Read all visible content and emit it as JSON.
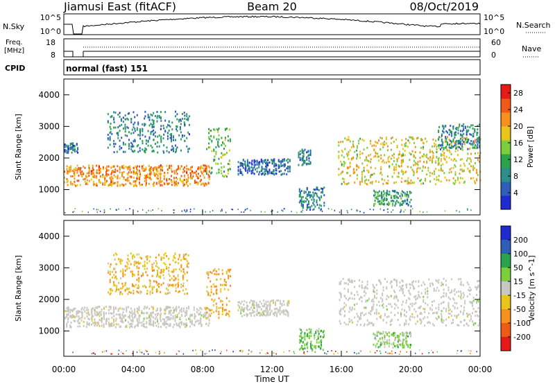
{
  "header": {
    "station": "Jiamusi East (fitACF)",
    "beam": "Beam 20",
    "date": "08/Oct/2019"
  },
  "noise_panel": {
    "left_label": "N.Sky",
    "right_label": "N.Search",
    "tick_top": "10^5",
    "tick_bottom": "10^0",
    "right_tick_top": "10^5",
    "right_tick_bottom": "10^0"
  },
  "freq_panel": {
    "left_label_1": "Freq.",
    "left_label_2": "[MHz]",
    "tick_top": "18",
    "tick_bottom": "8",
    "right_label": "Nave",
    "right_tick_top": "60",
    "right_tick_bottom": "0"
  },
  "cpid_panel": {
    "label": "CPID",
    "mode": "normal (fast) 151"
  },
  "x_axis": {
    "label": "Time UT",
    "ticks": [
      "00:00",
      "04:00",
      "08:00",
      "12:00",
      "16:00",
      "20:00",
      "00:00"
    ]
  },
  "colors": {
    "power_scale": [
      "#1f2ad0",
      "#2d5fb8",
      "#2e8f8a",
      "#2aa34a",
      "#7ccf3c",
      "#e8c51b",
      "#f5911c",
      "#ef5a17",
      "#e61a17"
    ],
    "velocity_scale": [
      "#1f2ad0",
      "#2d5fb8",
      "#2aa34a",
      "#7ccf3c",
      "#c8c8c0",
      "#e8c51b",
      "#f5911c",
      "#ef5a17",
      "#e61a17"
    ],
    "ground_scatter": "#c8c8c0"
  },
  "chart_data": [
    {
      "type": "heatmap",
      "panel": "power",
      "ylabel": "Slant Range [km]",
      "xlabel": "Time UT",
      "x_range_hours": [
        0,
        24
      ],
      "ylim": [
        200,
        4500
      ],
      "y_ticks": [
        "1000",
        "2000",
        "3000",
        "4000"
      ],
      "colorbar_label": "Power [dB]",
      "colorbar_ticks": [
        "4",
        "8",
        "12",
        "16",
        "20",
        "24",
        "28"
      ],
      "colorbar_range": [
        0,
        30
      ],
      "echo_bands": [
        {
          "t_start": 0.0,
          "t_end": 8.4,
          "range_start": 1150,
          "range_end": 1800,
          "power": 22
        },
        {
          "t_start": 0.0,
          "t_end": 0.8,
          "range_start": 2200,
          "range_end": 2500,
          "power": 6
        },
        {
          "t_start": 2.5,
          "t_end": 7.2,
          "range_start": 2200,
          "range_end": 3500,
          "power": 8
        },
        {
          "t_start": 8.2,
          "t_end": 9.6,
          "range_start": 1400,
          "range_end": 3000,
          "power": 14
        },
        {
          "t_start": 10.0,
          "t_end": 13.0,
          "range_start": 1500,
          "range_end": 2000,
          "power": 6
        },
        {
          "t_start": 13.5,
          "t_end": 14.2,
          "range_start": 1800,
          "range_end": 2300,
          "power": 8
        },
        {
          "t_start": 13.5,
          "t_end": 15.0,
          "range_start": 400,
          "range_end": 1100,
          "power": 8
        },
        {
          "t_start": 15.8,
          "t_end": 24.0,
          "range_start": 1200,
          "range_end": 2700,
          "power": 18
        },
        {
          "t_start": 17.8,
          "t_end": 20.0,
          "range_start": 500,
          "range_end": 1000,
          "power": 10
        },
        {
          "t_start": 21.5,
          "t_end": 24.0,
          "range_start": 2300,
          "range_end": 3100,
          "power": 8
        }
      ]
    },
    {
      "type": "heatmap",
      "panel": "velocity",
      "ylabel": "Slant Range [km]",
      "xlabel": "Time UT",
      "x_range_hours": [
        0,
        24
      ],
      "ylim": [
        200,
        4500
      ],
      "y_ticks": [
        "1000",
        "2000",
        "3000",
        "4000"
      ],
      "colorbar_label": "Velocity [m s^-1]",
      "colorbar_ticks": [
        "200",
        "100",
        "50",
        "15",
        "-15",
        "-50",
        "-100",
        "-200"
      ],
      "colorbar_range": [
        -250,
        250
      ],
      "echo_bands": [
        {
          "t_start": 0.0,
          "t_end": 8.4,
          "range_start": 1150,
          "range_end": 1800,
          "velocity": 0
        },
        {
          "t_start": 2.5,
          "t_end": 7.2,
          "range_start": 2200,
          "range_end": 3500,
          "velocity": -40
        },
        {
          "t_start": 8.2,
          "t_end": 9.6,
          "range_start": 1400,
          "range_end": 3000,
          "velocity": -60
        },
        {
          "t_start": 10.0,
          "t_end": 13.0,
          "range_start": 1500,
          "range_end": 2000,
          "velocity": 0
        },
        {
          "t_start": 13.5,
          "t_end": 15.0,
          "range_start": 400,
          "range_end": 1100,
          "velocity": 40
        },
        {
          "t_start": 15.8,
          "t_end": 24.0,
          "range_start": 1200,
          "range_end": 2700,
          "velocity": 0
        },
        {
          "t_start": 17.8,
          "t_end": 20.0,
          "range_start": 500,
          "range_end": 1000,
          "velocity": 30
        }
      ]
    }
  ]
}
